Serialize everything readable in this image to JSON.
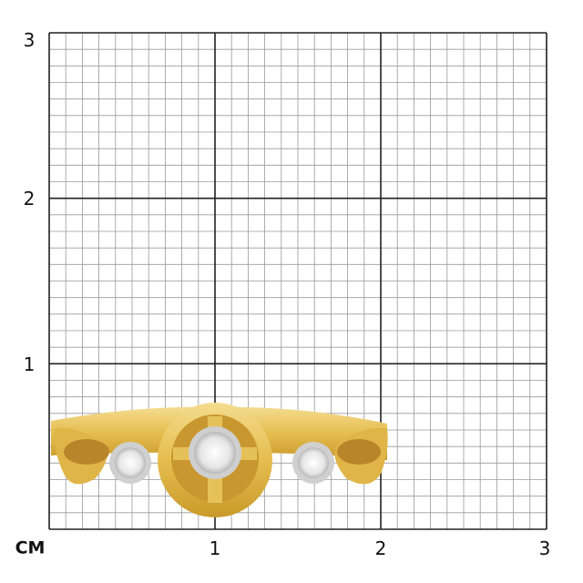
{
  "grid": {
    "unit_label": "CM",
    "y_labels": [
      "1",
      "2",
      "3"
    ],
    "x_labels": [
      "1",
      "2",
      "3"
    ],
    "range_cm": [
      0,
      3
    ],
    "minor_divisions_per_cm": 10,
    "major_line_color": "#222222",
    "minor_line_color": "#9a9a9a"
  },
  "product": {
    "type": "ring",
    "metal_color": "#e8c25a",
    "setting_color": "#d8d8d8",
    "stones": 3
  }
}
